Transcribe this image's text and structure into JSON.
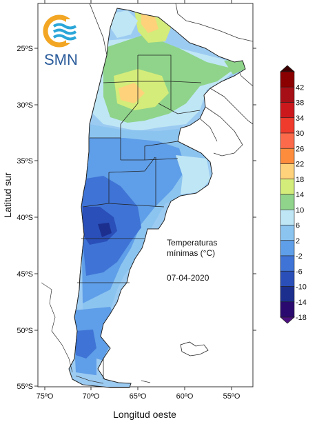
{
  "logo": {
    "text": "SMN"
  },
  "map": {
    "x_axis_title": "Longitud oeste",
    "y_axis_title": "Latitud sur",
    "lon_ticks": [
      {
        "value": 75,
        "label": "75ºO"
      },
      {
        "value": 70,
        "label": "70ºO"
      },
      {
        "value": 65,
        "label": "65ºO"
      },
      {
        "value": 60,
        "label": "60ºO"
      },
      {
        "value": 55,
        "label": "55ºO"
      }
    ],
    "lat_ticks": [
      {
        "value": 25,
        "label": "25ºS"
      },
      {
        "value": 30,
        "label": "30ºS"
      },
      {
        "value": 35,
        "label": "35ºS"
      },
      {
        "value": 40,
        "label": "40ºS"
      },
      {
        "value": 45,
        "label": "45ºS"
      },
      {
        "value": 50,
        "label": "50ºS"
      },
      {
        "value": 55,
        "label": "55ºS"
      }
    ],
    "title_line1": "Temperaturas",
    "title_line2": "mínimas (°C)",
    "date": "07-04-2020"
  },
  "colorbar": {
    "levels": [
      {
        "label": "42",
        "color": "#8b0000"
      },
      {
        "label": "38",
        "color": "#a50f15"
      },
      {
        "label": "34",
        "color": "#cb181d"
      },
      {
        "label": "30",
        "color": "#ef3b2c"
      },
      {
        "label": "26",
        "color": "#fb6a4a"
      },
      {
        "label": "22",
        "color": "#fd8d3c"
      },
      {
        "label": "18",
        "color": "#fdd27a"
      },
      {
        "label": "14",
        "color": "#d4ec7a"
      },
      {
        "label": "10",
        "color": "#8fd48a"
      },
      {
        "label": "6",
        "color": "#bfe6f5"
      },
      {
        "label": "2",
        "color": "#8cc4f0"
      },
      {
        "label": "-2",
        "color": "#5f9ee8"
      },
      {
        "label": "-6",
        "color": "#3f74d6"
      },
      {
        "label": "-10",
        "color": "#2a4fb8"
      },
      {
        "label": "-14",
        "color": "#1c2f8f"
      },
      {
        "label": "-18",
        "color": "#2a0a6e"
      }
    ],
    "top_color": "#3d0000",
    "bottom_color": "#4b1080"
  }
}
